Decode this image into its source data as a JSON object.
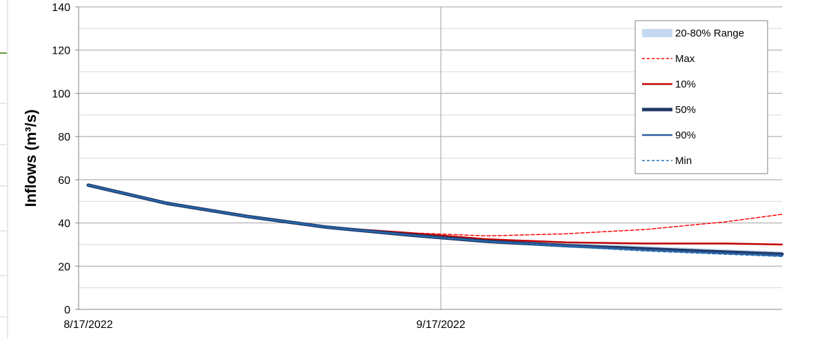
{
  "chart_data": {
    "type": "line",
    "title": "",
    "xlabel": "",
    "ylabel": "Inflows (m³/s)",
    "ylim": [
      0,
      140
    ],
    "yticks": [
      0,
      20,
      40,
      60,
      80,
      100,
      120,
      140
    ],
    "xlim": [
      "8/17/2022",
      "10/17/2022"
    ],
    "xtick_labels": [
      "8/17/2022",
      "9/17/2022"
    ],
    "grid": true,
    "legend_position": "top-right",
    "x": [
      "8/17/2022",
      "8/24/2022",
      "8/31/2022",
      "9/7/2022",
      "9/14/2022",
      "9/21/2022",
      "9/28/2022",
      "10/5/2022",
      "10/12/2022",
      "10/17/2022"
    ],
    "band": {
      "name": "20-80% Range",
      "color": "#c6d9f0",
      "lower": [
        57.5,
        49,
        43,
        38,
        34.5,
        32,
        29.5,
        28,
        26,
        24.5
      ],
      "upper": [
        57.5,
        49,
        43,
        38,
        34.5,
        32,
        30.5,
        29,
        27.5,
        26.5
      ]
    },
    "series": [
      {
        "name": "Max",
        "color": "#ff0000",
        "style": "dashed",
        "width": 1.5,
        "values": [
          57.5,
          49,
          43,
          38,
          35.5,
          34,
          35,
          37,
          40.5,
          44
        ]
      },
      {
        "name": "10%",
        "color": "#c00000",
        "style": "solid",
        "width": 2.5,
        "values": [
          57.5,
          49,
          43,
          38,
          35.5,
          32.5,
          31,
          30.5,
          30.5,
          30
        ]
      },
      {
        "name": "50%",
        "color": "#1f3864",
        "style": "solid",
        "width": 5,
        "values": [
          57.5,
          49,
          43,
          38,
          34.5,
          31.5,
          29.5,
          28,
          26.5,
          25.5
        ]
      },
      {
        "name": "90%",
        "color": "#2e5c9e",
        "style": "solid",
        "width": 2.5,
        "values": [
          57.5,
          49,
          43,
          38,
          34.5,
          31.5,
          29.5,
          27.5,
          26,
          25
        ]
      },
      {
        "name": "Min",
        "color": "#1f6fb5",
        "style": "dashed",
        "width": 1.5,
        "values": [
          57.5,
          49,
          43,
          38,
          34.5,
          31.5,
          29,
          27,
          25.5,
          24.5
        ]
      }
    ],
    "legend_order": [
      "20-80% Range",
      "Max",
      "10%",
      "50%",
      "90%",
      "Min"
    ]
  }
}
